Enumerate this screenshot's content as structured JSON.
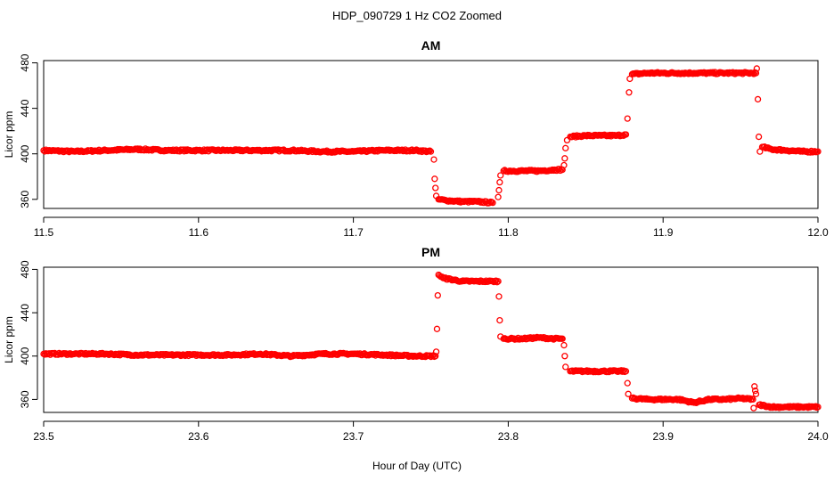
{
  "figure": {
    "title": "HDP_090729  1 Hz CO2 Zoomed",
    "xlabel": "Hour of Day (UTC)"
  },
  "chart_data": [
    {
      "type": "scatter",
      "title": "AM",
      "ylabel": "Licor ppm",
      "xlim": [
        11.5,
        12.0
      ],
      "ylim": [
        352,
        482
      ],
      "xticks": [
        11.5,
        11.6,
        11.7,
        11.8,
        11.9,
        12.0
      ],
      "xtick_labels": [
        "11.5",
        "11.6",
        "11.7",
        "11.8",
        "11.9",
        "12.0"
      ],
      "yticks": [
        360,
        400,
        440,
        480
      ],
      "ytick_labels": [
        "360",
        "400",
        "440",
        "480"
      ],
      "marker_color": "#ff0000",
      "grid": false,
      "series": [
        {
          "points": [
            [
              11.5,
              403
            ],
            [
              11.52,
              402
            ],
            [
              11.54,
              403
            ],
            [
              11.56,
              404
            ],
            [
              11.58,
              403
            ],
            [
              11.6,
              403
            ],
            [
              11.62,
              403
            ],
            [
              11.64,
              403
            ],
            [
              11.66,
              403
            ],
            [
              11.68,
              402
            ],
            [
              11.7,
              402
            ],
            [
              11.72,
              403
            ],
            [
              11.74,
              403
            ],
            [
              11.75,
              402
            ],
            [
              11.752,
              395
            ],
            [
              11.7525,
              378
            ],
            [
              11.753,
              370
            ],
            [
              11.7535,
              363
            ],
            [
              11.755,
              360
            ],
            [
              11.76,
              359
            ],
            [
              11.77,
              358
            ],
            [
              11.78,
              358
            ],
            [
              11.79,
              357
            ],
            [
              11.7935,
              362
            ],
            [
              11.794,
              368
            ],
            [
              11.7945,
              375
            ],
            [
              11.795,
              381
            ],
            [
              11.797,
              385
            ],
            [
              11.81,
              385
            ],
            [
              11.82,
              385
            ],
            [
              11.83,
              386
            ],
            [
              11.835,
              386
            ],
            [
              11.836,
              390
            ],
            [
              11.8365,
              396
            ],
            [
              11.837,
              405
            ],
            [
              11.838,
              412
            ],
            [
              11.84,
              415
            ],
            [
              11.85,
              416
            ],
            [
              11.86,
              416
            ],
            [
              11.87,
              416
            ],
            [
              11.876,
              417
            ],
            [
              11.877,
              431
            ],
            [
              11.878,
              454
            ],
            [
              11.8785,
              466
            ],
            [
              11.88,
              470
            ],
            [
              11.89,
              471
            ],
            [
              11.9,
              471
            ],
            [
              11.91,
              471
            ],
            [
              11.92,
              471
            ],
            [
              11.93,
              471
            ],
            [
              11.94,
              471
            ],
            [
              11.95,
              471
            ],
            [
              11.96,
              471
            ],
            [
              11.9605,
              475
            ],
            [
              11.9612,
              448
            ],
            [
              11.9618,
              415
            ],
            [
              11.9625,
              402
            ],
            [
              11.964,
              406
            ],
            [
              11.97,
              404
            ],
            [
              11.98,
              403
            ],
            [
              11.99,
              402
            ],
            [
              12.0,
              402
            ]
          ]
        }
      ]
    },
    {
      "type": "scatter",
      "title": "PM",
      "ylabel": "Licor ppm",
      "xlim": [
        23.5,
        24.0
      ],
      "ylim": [
        348,
        482
      ],
      "xticks": [
        23.5,
        23.6,
        23.7,
        23.8,
        23.9,
        24.0
      ],
      "xtick_labels": [
        "23.5",
        "23.6",
        "23.7",
        "23.8",
        "23.9",
        "24.0"
      ],
      "yticks": [
        360,
        400,
        440,
        480
      ],
      "ytick_labels": [
        "360",
        "400",
        "440",
        "480"
      ],
      "marker_color": "#ff0000",
      "grid": false,
      "series": [
        {
          "points": [
            [
              23.5,
              402
            ],
            [
              23.52,
              402
            ],
            [
              23.54,
              402
            ],
            [
              23.56,
              401
            ],
            [
              23.58,
              401
            ],
            [
              23.6,
              401
            ],
            [
              23.62,
              401
            ],
            [
              23.64,
              402
            ],
            [
              23.66,
              400
            ],
            [
              23.68,
              402
            ],
            [
              23.7,
              402
            ],
            [
              23.72,
              401
            ],
            [
              23.74,
              400
            ],
            [
              23.753,
              400
            ],
            [
              23.7535,
              404
            ],
            [
              23.754,
              425
            ],
            [
              23.7545,
              456
            ],
            [
              23.755,
              475
            ],
            [
              23.758,
              472
            ],
            [
              23.77,
              469
            ],
            [
              23.78,
              469
            ],
            [
              23.79,
              469
            ],
            [
              23.7935,
              469
            ],
            [
              23.794,
              455
            ],
            [
              23.7945,
              433
            ],
            [
              23.795,
              418
            ],
            [
              23.797,
              416
            ],
            [
              23.81,
              416
            ],
            [
              23.82,
              417
            ],
            [
              23.83,
              416
            ],
            [
              23.835,
              416
            ],
            [
              23.836,
              410
            ],
            [
              23.8365,
              400
            ],
            [
              23.837,
              390
            ],
            [
              23.84,
              386
            ],
            [
              23.85,
              386
            ],
            [
              23.86,
              386
            ],
            [
              23.87,
              386
            ],
            [
              23.876,
              386
            ],
            [
              23.877,
              375
            ],
            [
              23.8775,
              365
            ],
            [
              23.88,
              361
            ],
            [
              23.89,
              360
            ],
            [
              23.9,
              360
            ],
            [
              23.91,
              360
            ],
            [
              23.92,
              357
            ],
            [
              23.93,
              360
            ],
            [
              23.94,
              360
            ],
            [
              23.95,
              361
            ],
            [
              23.958,
              360
            ],
            [
              23.9585,
              352
            ],
            [
              23.959,
              372
            ],
            [
              23.9595,
              368
            ],
            [
              23.96,
              365
            ],
            [
              23.962,
              355
            ],
            [
              23.97,
              353
            ],
            [
              23.98,
              353
            ],
            [
              23.99,
              353
            ],
            [
              24.0,
              353
            ]
          ]
        }
      ]
    }
  ]
}
